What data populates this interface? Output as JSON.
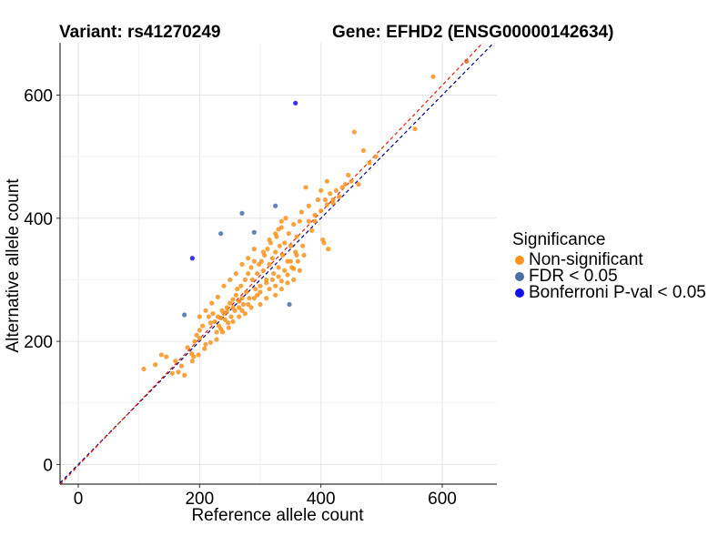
{
  "titles": {
    "variant": "Variant: rs41270249",
    "gene": "Gene: EFHD2 (ENSG00000142634)"
  },
  "legend": {
    "title": "Significance",
    "items": [
      {
        "label": "Non-significant",
        "color": "#F7931E"
      },
      {
        "label": "FDR < 0.05",
        "color": "#4A6FA5"
      },
      {
        "label": "Bonferroni P-val < 0.05",
        "color": "#1010E8"
      }
    ]
  },
  "chart_data": {
    "type": "scatter",
    "xlabel": "Reference allele count",
    "ylabel": "Alternative allele count",
    "xlim": [
      -30,
      690
    ],
    "ylim": [
      -32,
      685
    ],
    "xticks": [
      0,
      200,
      400,
      600
    ],
    "yticks": [
      0,
      200,
      400,
      600
    ],
    "grid": true,
    "legend_position": "right",
    "reference_lines": [
      {
        "name": "y = x",
        "style": "dashed",
        "color": "#000080",
        "slope": 1.0,
        "intercept": 0
      },
      {
        "name": "fit",
        "style": "dashed",
        "color": "#E02010",
        "slope": 1.03,
        "intercept": -2
      }
    ],
    "series": [
      {
        "name": "Non-significant",
        "color": "#F7931E",
        "points": [
          [
            108,
            155
          ],
          [
            127,
            162
          ],
          [
            137,
            178
          ],
          [
            145,
            175
          ],
          [
            155,
            148
          ],
          [
            160,
            168
          ],
          [
            165,
            150
          ],
          [
            170,
            160
          ],
          [
            175,
            145
          ],
          [
            180,
            190
          ],
          [
            187,
            180
          ],
          [
            190,
            175
          ],
          [
            192,
            200
          ],
          [
            195,
            210
          ],
          [
            200,
            205
          ],
          [
            200,
            218
          ],
          [
            205,
            225
          ],
          [
            210,
            195
          ],
          [
            215,
            240
          ],
          [
            218,
            230
          ],
          [
            222,
            245
          ],
          [
            228,
            215
          ],
          [
            230,
            240
          ],
          [
            232,
            225
          ],
          [
            235,
            220
          ],
          [
            237,
            250
          ],
          [
            240,
            245
          ],
          [
            242,
            235
          ],
          [
            245,
            255
          ],
          [
            247,
            230
          ],
          [
            250,
            262
          ],
          [
            252,
            240
          ],
          [
            255,
            268
          ],
          [
            258,
            250
          ],
          [
            260,
            275
          ],
          [
            262,
            285
          ],
          [
            265,
            255
          ],
          [
            268,
            290
          ],
          [
            270,
            270
          ],
          [
            272,
            260
          ],
          [
            275,
            300
          ],
          [
            277,
            280
          ],
          [
            280,
            310
          ],
          [
            282,
            270
          ],
          [
            285,
            320
          ],
          [
            287,
            300
          ],
          [
            290,
            330
          ],
          [
            292,
            285
          ],
          [
            295,
            310
          ],
          [
            298,
            325
          ],
          [
            300,
            290
          ],
          [
            302,
            330
          ],
          [
            305,
            315
          ],
          [
            307,
            340
          ],
          [
            310,
            300
          ],
          [
            312,
            350
          ],
          [
            315,
            325
          ],
          [
            317,
            360
          ],
          [
            320,
            335
          ],
          [
            322,
            310
          ],
          [
            325,
            345
          ],
          [
            327,
            370
          ],
          [
            330,
            320
          ],
          [
            332,
            355
          ],
          [
            335,
            385
          ],
          [
            337,
            340
          ],
          [
            340,
            360
          ],
          [
            342,
            400
          ],
          [
            345,
            330
          ],
          [
            347,
            375
          ],
          [
            350,
            355
          ],
          [
            352,
            320
          ],
          [
            355,
            390
          ],
          [
            358,
            345
          ],
          [
            360,
            370
          ],
          [
            362,
            330
          ],
          [
            365,
            395
          ],
          [
            368,
            410
          ],
          [
            370,
            355
          ],
          [
            372,
            340
          ],
          [
            375,
            450
          ],
          [
            380,
            420
          ],
          [
            385,
            380
          ],
          [
            390,
            395
          ],
          [
            395,
            430
          ],
          [
            400,
            445
          ],
          [
            403,
            365
          ],
          [
            405,
            360
          ],
          [
            407,
            430
          ],
          [
            410,
            460
          ],
          [
            412,
            350
          ],
          [
            415,
            440
          ],
          [
            420,
            425
          ],
          [
            425,
            445
          ],
          [
            430,
            435
          ],
          [
            435,
            450
          ],
          [
            440,
            455
          ],
          [
            445,
            470
          ],
          [
            450,
            460
          ],
          [
            455,
            540
          ],
          [
            462,
            455
          ],
          [
            470,
            510
          ],
          [
            480,
            490
          ],
          [
            490,
            500
          ],
          [
            555,
            545
          ],
          [
            585,
            630
          ],
          [
            300,
            280
          ],
          [
            310,
            295
          ],
          [
            290,
            270
          ],
          [
            280,
            260
          ],
          [
            270,
            250
          ],
          [
            265,
            240
          ],
          [
            255,
            232
          ],
          [
            248,
            222
          ],
          [
            238,
            215
          ],
          [
            228,
            203
          ],
          [
            218,
            198
          ],
          [
            208,
            188
          ],
          [
            198,
            178
          ],
          [
            188,
            168
          ],
          [
            320,
            300
          ],
          [
            330,
            305
          ],
          [
            340,
            315
          ],
          [
            350,
            330
          ],
          [
            360,
            340
          ],
          [
            295,
            275
          ],
          [
            285,
            255
          ],
          [
            275,
            245
          ],
          [
            300,
            260
          ],
          [
            310,
            270
          ],
          [
            315,
            285
          ],
          [
            325,
            290
          ],
          [
            335,
            298
          ],
          [
            345,
            308
          ],
          [
            355,
            318
          ],
          [
            265,
            265
          ],
          [
            255,
            255
          ],
          [
            245,
            248
          ],
          [
            235,
            238
          ],
          [
            225,
            232
          ],
          [
            305,
            345
          ],
          [
            315,
            365
          ],
          [
            325,
            375
          ],
          [
            335,
            395
          ],
          [
            330,
            382
          ],
          [
            290,
            350
          ],
          [
            280,
            335
          ],
          [
            270,
            325
          ],
          [
            260,
            310
          ],
          [
            250,
            300
          ],
          [
            240,
            290
          ],
          [
            230,
            272
          ],
          [
            220,
            262
          ],
          [
            210,
            250
          ],
          [
            200,
            240
          ],
          [
            380,
            395
          ],
          [
            390,
            405
          ],
          [
            400,
            412
          ],
          [
            410,
            422
          ],
          [
            420,
            430
          ],
          [
            355,
            300
          ],
          [
            365,
            315
          ],
          [
            345,
            295
          ],
          [
            335,
            285
          ],
          [
            325,
            275
          ]
        ]
      },
      {
        "name": "FDR < 0.05",
        "color": "#4A6FA5",
        "points": [
          [
            175,
            243
          ],
          [
            235,
            375
          ],
          [
            270,
            408
          ],
          [
            290,
            377
          ],
          [
            325,
            420
          ],
          [
            348,
            260
          ]
        ]
      },
      {
        "name": "Bonferroni P-val < 0.05",
        "color": "#1010E8",
        "points": [
          [
            188,
            335
          ],
          [
            358,
            587
          ]
        ]
      },
      {
        "name": "highlight",
        "color": "#D2691E",
        "points": [
          [
            640,
            655
          ]
        ]
      }
    ]
  }
}
